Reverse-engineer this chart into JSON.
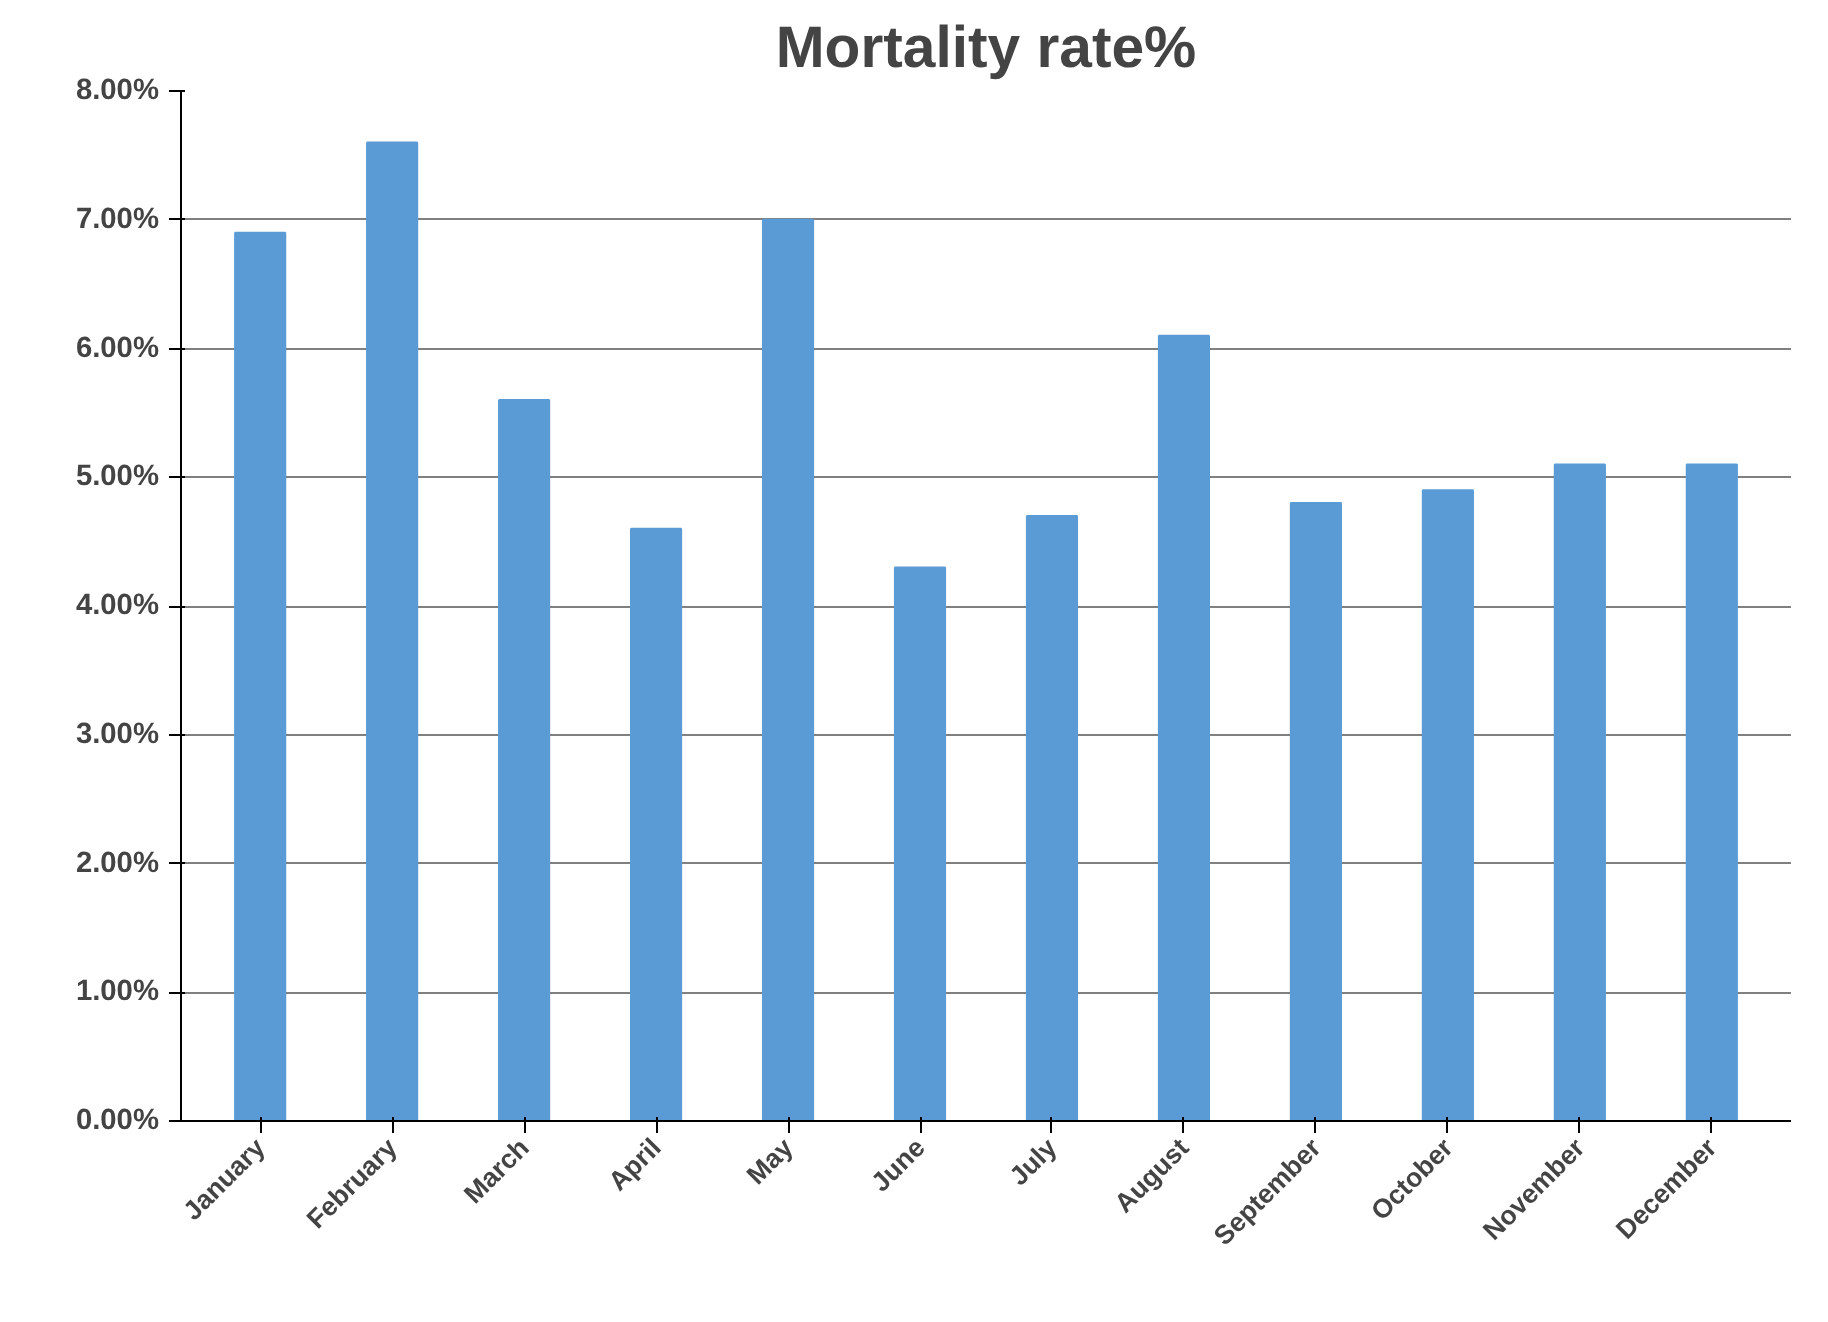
{
  "chart_data": {
    "type": "bar",
    "title": "Mortality rate%",
    "categories": [
      "January",
      "February",
      "March",
      "April",
      "May",
      "June",
      "July",
      "August",
      "September",
      "October",
      "November",
      "December"
    ],
    "values": [
      6.9,
      7.6,
      5.6,
      4.6,
      7.0,
      4.3,
      4.7,
      6.1,
      4.8,
      4.9,
      5.1,
      5.1
    ],
    "color": "#5b9bd5",
    "ylim": [
      0,
      8
    ],
    "yticks": [
      {
        "value": 0,
        "label": "0.00%"
      },
      {
        "value": 1,
        "label": "1.00%"
      },
      {
        "value": 2,
        "label": "2.00%"
      },
      {
        "value": 3,
        "label": "3.00%"
      },
      {
        "value": 4,
        "label": "4.00%"
      },
      {
        "value": 5,
        "label": "5.00%"
      },
      {
        "value": 6,
        "label": "6.00%"
      },
      {
        "value": 7,
        "label": "7.00%"
      },
      {
        "value": 8,
        "label": "8.00%"
      }
    ],
    "grid": "y"
  }
}
